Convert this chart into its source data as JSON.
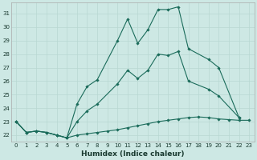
{
  "xlabel": "Humidex (Indice chaleur)",
  "bg_color": "#cde8e4",
  "grid_color": "#b8d8d2",
  "line_color": "#1a6b5a",
  "xlim": [
    -0.5,
    23.5
  ],
  "ylim": [
    21.5,
    31.8
  ],
  "yticks": [
    22,
    23,
    24,
    25,
    26,
    27,
    28,
    29,
    30,
    31
  ],
  "xticks": [
    0,
    1,
    2,
    3,
    4,
    5,
    6,
    7,
    8,
    9,
    10,
    11,
    12,
    13,
    14,
    15,
    16,
    17,
    18,
    19,
    20,
    21,
    22,
    23
  ],
  "s1_x": [
    0,
    1,
    2,
    3,
    4,
    5,
    6,
    7,
    8,
    10,
    11,
    12,
    13,
    14,
    15,
    16,
    17,
    19,
    20,
    22
  ],
  "s1_y": [
    23.0,
    22.2,
    22.3,
    22.2,
    22.0,
    21.8,
    24.3,
    25.6,
    26.1,
    29.0,
    30.6,
    28.8,
    29.8,
    31.3,
    31.3,
    31.5,
    28.4,
    27.6,
    27.0,
    23.3
  ],
  "s2_x": [
    0,
    1,
    2,
    3,
    4,
    5,
    6,
    7,
    8,
    10,
    11,
    12,
    13,
    14,
    15,
    16,
    17,
    19,
    20,
    22
  ],
  "s2_y": [
    23.0,
    22.2,
    22.3,
    22.2,
    22.0,
    21.8,
    23.0,
    23.8,
    24.3,
    25.8,
    26.8,
    26.2,
    26.8,
    28.0,
    27.9,
    28.2,
    26.0,
    25.4,
    24.9,
    23.3
  ],
  "s3_x": [
    0,
    1,
    2,
    3,
    4,
    5,
    6,
    7,
    8,
    9,
    10,
    11,
    12,
    13,
    14,
    15,
    16,
    17,
    18,
    19,
    20,
    21,
    22,
    23
  ],
  "s3_y": [
    23.0,
    22.2,
    22.3,
    22.2,
    22.0,
    21.8,
    22.0,
    22.1,
    22.2,
    22.3,
    22.4,
    22.55,
    22.7,
    22.85,
    23.0,
    23.1,
    23.2,
    23.3,
    23.35,
    23.3,
    23.2,
    23.15,
    23.1,
    23.1
  ],
  "tick_fontsize": 5.0,
  "xlabel_fontsize": 6.5
}
